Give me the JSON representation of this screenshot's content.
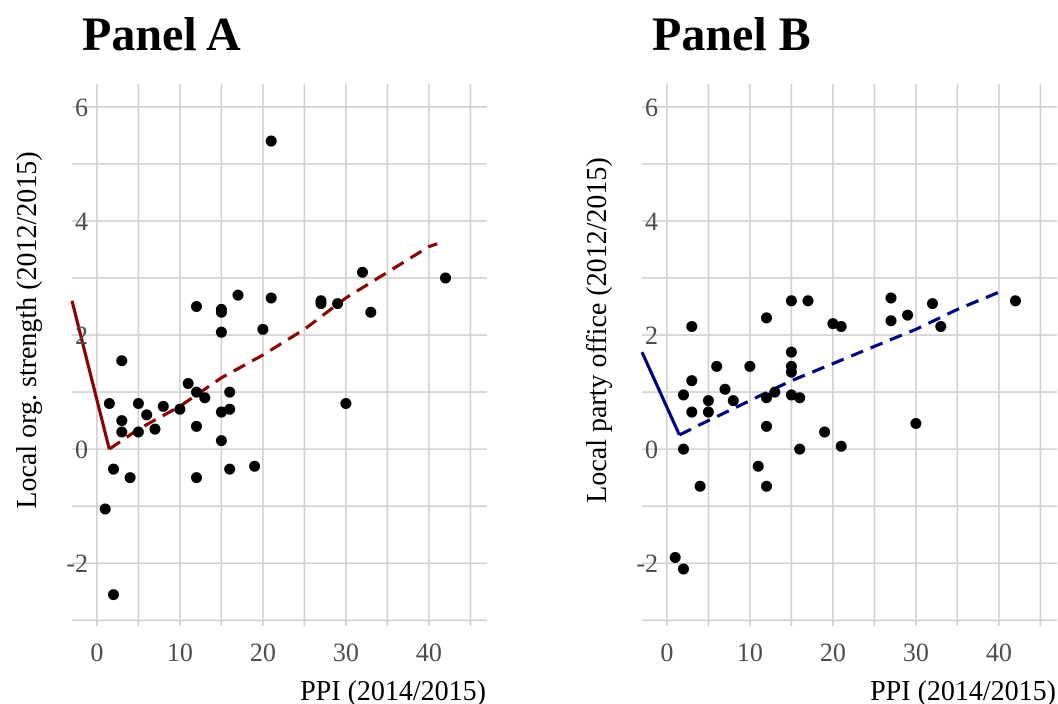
{
  "chart_data": [
    {
      "type": "scatter",
      "title": "Panel A",
      "xlabel": "PPI (2014/2015)",
      "ylabel": "Local org. strength (2012/2015)",
      "xlim": [
        -3,
        47
      ],
      "ylim": [
        -3.1,
        6.4
      ],
      "xticks": [
        0,
        10,
        20,
        30,
        40
      ],
      "yticks": [
        -2,
        0,
        2,
        4,
        6
      ],
      "grid": true,
      "line_color": "#8b0000",
      "point_color": "#000000",
      "points": [
        [
          1,
          -1.05
        ],
        [
          1.5,
          0.8
        ],
        [
          2,
          -2.55
        ],
        [
          2,
          -0.35
        ],
        [
          3,
          1.55
        ],
        [
          3,
          0.5
        ],
        [
          3,
          0.3
        ],
        [
          4,
          -0.5
        ],
        [
          5,
          0.8
        ],
        [
          5,
          0.3
        ],
        [
          6,
          0.6
        ],
        [
          7,
          0.35
        ],
        [
          8,
          0.75
        ],
        [
          10,
          0.7
        ],
        [
          11,
          1.15
        ],
        [
          12,
          2.5
        ],
        [
          12,
          1.0
        ],
        [
          12,
          0.4
        ],
        [
          12,
          -0.5
        ],
        [
          13,
          0.9
        ],
        [
          15,
          2.45
        ],
        [
          15,
          2.4
        ],
        [
          15,
          2.05
        ],
        [
          15,
          0.65
        ],
        [
          15,
          0.15
        ],
        [
          16,
          1.0
        ],
        [
          16,
          0.7
        ],
        [
          16,
          -0.35
        ],
        [
          17,
          2.7
        ],
        [
          19,
          -0.3
        ],
        [
          20,
          2.1
        ],
        [
          21,
          5.4
        ],
        [
          21,
          2.65
        ],
        [
          27,
          2.6
        ],
        [
          27,
          2.55
        ],
        [
          29,
          2.55
        ],
        [
          30,
          0.8
        ],
        [
          32,
          3.1
        ],
        [
          33,
          2.4
        ],
        [
          42,
          3.0
        ]
      ],
      "fit_solid": [
        [
          -3,
          2.6
        ],
        [
          1.5,
          0.0
        ]
      ],
      "fit_dashed": [
        [
          1.5,
          0.0
        ],
        [
          5,
          0.35
        ],
        [
          10,
          0.75
        ],
        [
          15,
          1.25
        ],
        [
          20,
          1.65
        ],
        [
          25,
          2.1
        ],
        [
          30,
          2.65
        ],
        [
          35,
          3.1
        ],
        [
          40,
          3.55
        ],
        [
          41,
          3.6
        ]
      ]
    },
    {
      "type": "scatter",
      "title": "Panel B",
      "xlabel": "PPI (2014/2015)",
      "ylabel": "Local party office (2012/2015)",
      "xlim": [
        -3,
        47
      ],
      "ylim": [
        -3.1,
        6.4
      ],
      "xticks": [
        0,
        10,
        20,
        30,
        40
      ],
      "yticks": [
        -2,
        0,
        2,
        4,
        6
      ],
      "grid": true,
      "line_color": "#00007f",
      "point_color": "#000000",
      "points": [
        [
          1,
          -1.9
        ],
        [
          2,
          -2.1
        ],
        [
          2,
          0.95
        ],
        [
          2,
          0.0
        ],
        [
          3,
          2.15
        ],
        [
          3,
          1.2
        ],
        [
          3,
          0.65
        ],
        [
          4,
          -0.65
        ],
        [
          5,
          0.85
        ],
        [
          5,
          0.65
        ],
        [
          6,
          1.45
        ],
        [
          7,
          1.05
        ],
        [
          8,
          0.85
        ],
        [
          10,
          1.45
        ],
        [
          11,
          -0.3
        ],
        [
          12,
          2.3
        ],
        [
          12,
          0.9
        ],
        [
          12,
          0.4
        ],
        [
          12,
          -0.65
        ],
        [
          13,
          1.0
        ],
        [
          15,
          2.6
        ],
        [
          15,
          1.7
        ],
        [
          15,
          1.45
        ],
        [
          15,
          1.35
        ],
        [
          15,
          0.95
        ],
        [
          16,
          0.9
        ],
        [
          16,
          0.0
        ],
        [
          17,
          2.6
        ],
        [
          19,
          0.3
        ],
        [
          20,
          2.2
        ],
        [
          21,
          2.15
        ],
        [
          21,
          0.05
        ],
        [
          27,
          2.65
        ],
        [
          27,
          2.25
        ],
        [
          29,
          2.35
        ],
        [
          30,
          0.45
        ],
        [
          32,
          2.55
        ],
        [
          33,
          2.15
        ],
        [
          42,
          2.6
        ]
      ],
      "fit_solid": [
        [
          -3,
          1.7
        ],
        [
          1.5,
          0.25
        ]
      ],
      "fit_dashed": [
        [
          1.5,
          0.25
        ],
        [
          5,
          0.5
        ],
        [
          10,
          0.85
        ],
        [
          15,
          1.2
        ],
        [
          20,
          1.5
        ],
        [
          25,
          1.8
        ],
        [
          30,
          2.1
        ],
        [
          35,
          2.45
        ],
        [
          40,
          2.75
        ]
      ]
    }
  ]
}
